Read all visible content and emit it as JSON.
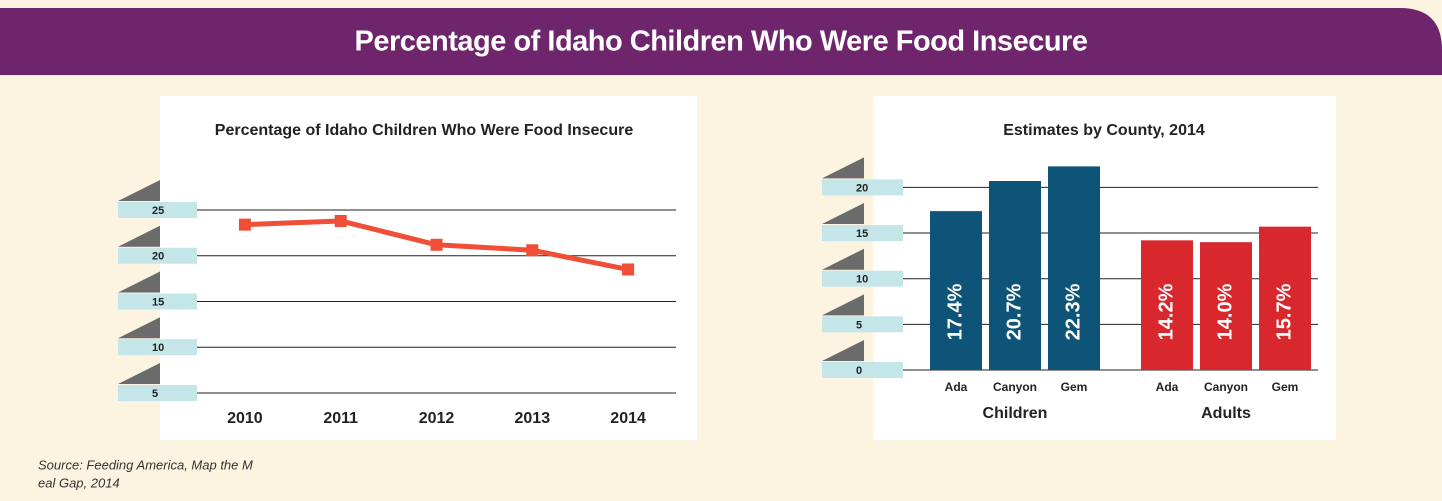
{
  "header": {
    "title": "Percentage of Idaho Children Who Were Food Insecure"
  },
  "chart_data": [
    {
      "type": "line",
      "title": "Percentage of Idaho Children Who Were Food Insecure",
      "categories": [
        "2010",
        "2011",
        "2012",
        "2013",
        "2014"
      ],
      "values": [
        23.4,
        23.8,
        21.2,
        20.6,
        18.5
      ],
      "color": "#f04e37",
      "ylim": [
        5,
        25
      ],
      "yticks": [
        5,
        10,
        15,
        20,
        25
      ],
      "grid": true
    },
    {
      "type": "bar",
      "title": "Estimates by County, 2014",
      "groups": [
        {
          "label": "Children",
          "color": "#0d5478",
          "categories": [
            "Ada",
            "Canyon",
            "Gem"
          ],
          "values": [
            17.4,
            20.7,
            22.3
          ],
          "value_labels": [
            "17.4%",
            "20.7%",
            "22.3%"
          ]
        },
        {
          "label": "Adults",
          "color": "#d9272e",
          "categories": [
            "Ada",
            "Canyon",
            "Gem"
          ],
          "values": [
            14.2,
            14.0,
            15.7
          ],
          "value_labels": [
            "14.2%",
            "14.0%",
            "15.7%"
          ]
        }
      ],
      "ylim": [
        0,
        23
      ],
      "yticks": [
        0,
        5,
        10,
        15,
        20
      ],
      "grid": true
    }
  ],
  "source": [
    "Source: Feeding America, Map the M",
    "eal Gap, 2014"
  ]
}
